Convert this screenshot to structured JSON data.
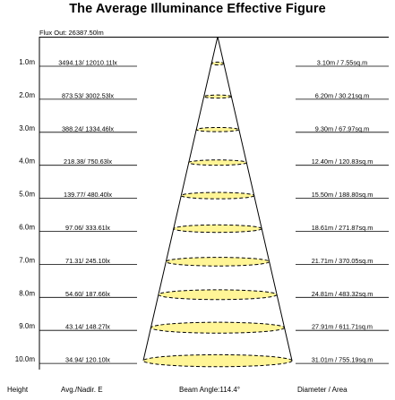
{
  "title": "The Average Illuminance Effective Figure",
  "flux_out": "Flux Out: 26387.50lm",
  "rows": [
    {
      "height": "1.0m",
      "illuminance": "3494.13/ 12010.11lx",
      "diameter_area": "3.10m / 7.55sq.m"
    },
    {
      "height": "2.0m",
      "illuminance": "873.53/ 3002.53lx",
      "diameter_area": "6.20m / 30.21sq.m"
    },
    {
      "height": "3.0m",
      "illuminance": "388.24/ 1334.46lx",
      "diameter_area": "9.30m / 67.97sq.m"
    },
    {
      "height": "4.0m",
      "illuminance": "218.38/ 750.63lx",
      "diameter_area": "12.40m / 120.83sq.m"
    },
    {
      "height": "5.0m",
      "illuminance": "139.77/ 480.40lx",
      "diameter_area": "15.50m / 188.80sq.m"
    },
    {
      "height": "6.0m",
      "illuminance": "97.06/ 333.61lx",
      "diameter_area": "18.61m / 271.87sq.m"
    },
    {
      "height": "7.0m",
      "illuminance": "71.31/ 245.10lx",
      "diameter_area": "21.71m / 370.05sq.m"
    },
    {
      "height": "8.0m",
      "illuminance": "54.60/ 187.66lx",
      "diameter_area": "24.81m / 483.32sq.m"
    },
    {
      "height": "9.0m",
      "illuminance": "43.14/ 148.27lx",
      "diameter_area": "27.91m / 611.71sq.m"
    },
    {
      "height": "10.0m",
      "illuminance": "34.94/ 120.10lx",
      "diameter_area": "31.01m / 755.19sq.m"
    }
  ],
  "footer": {
    "height": "Height",
    "avg_nadir": "Avg./Nadir. E",
    "beam_angle": "Beam Angle:114.4°",
    "diameter_area": "Diameter / Area"
  },
  "colors": {
    "ellipse_fill": "#fff596",
    "lines": "#000000"
  }
}
